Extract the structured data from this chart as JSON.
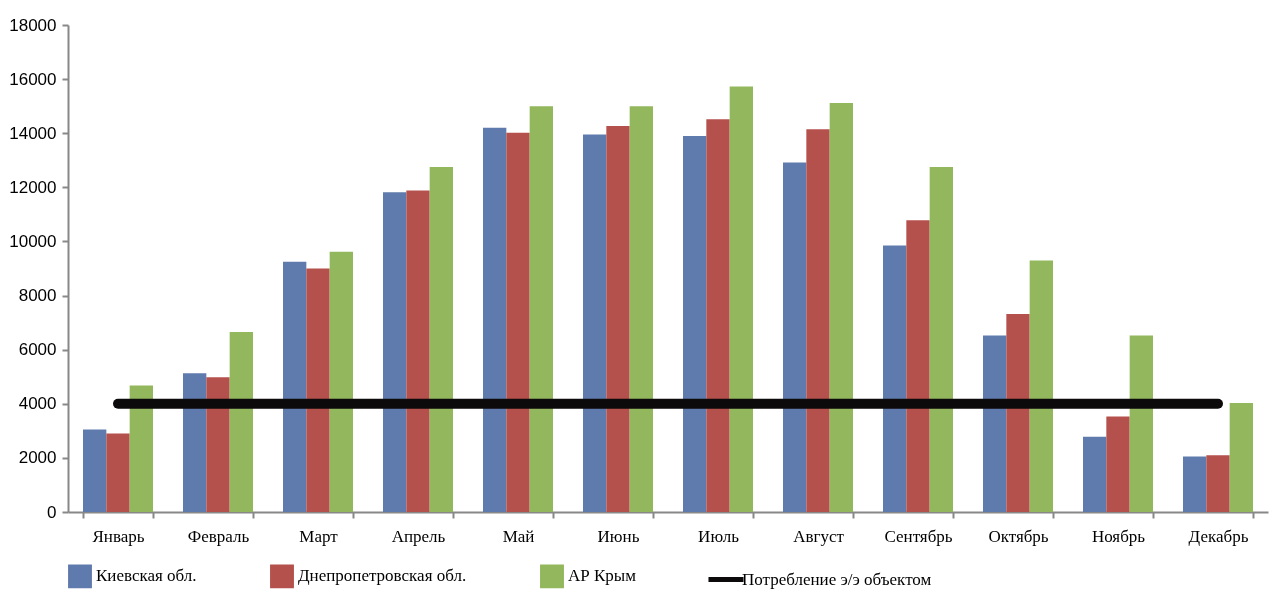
{
  "chart_data": {
    "type": "bar",
    "categories": [
      "Январь",
      "Февраль",
      "Март",
      "Апрель",
      "Май",
      "Июнь",
      "Июль",
      "Август",
      "Сентябрь",
      "Октябрь",
      "Ноябрь",
      "Декабрь"
    ],
    "series": [
      {
        "name": "Киевская обл.",
        "color": "#5f7aad",
        "values": [
          3050,
          5130,
          9250,
          11820,
          14200,
          13950,
          13900,
          12920,
          9850,
          6520,
          2780,
          2050
        ]
      },
      {
        "name": "Днепропетровская обл.",
        "color": "#b5514c",
        "values": [
          2900,
          4980,
          9000,
          11880,
          14020,
          14270,
          14520,
          14150,
          10780,
          7320,
          3530,
          2100
        ]
      },
      {
        "name": "АР Крым",
        "color": "#92b75c",
        "values": [
          4680,
          6650,
          9620,
          12750,
          15000,
          15000,
          15730,
          15120,
          12750,
          9300,
          6520,
          4030
        ]
      },
      {
        "name": "Потребление э/э объектом",
        "type": "line",
        "color": "#0d0a0b",
        "values": [
          4000,
          4000,
          4000,
          4000,
          4000,
          4000,
          4000,
          4000,
          4000,
          4000,
          4000,
          4000
        ]
      }
    ],
    "ylim": [
      0,
      18000
    ],
    "yticks": [
      0,
      2000,
      4000,
      6000,
      8000,
      10000,
      12000,
      14000,
      16000,
      18000
    ],
    "grid": false,
    "legend": "bottom"
  }
}
